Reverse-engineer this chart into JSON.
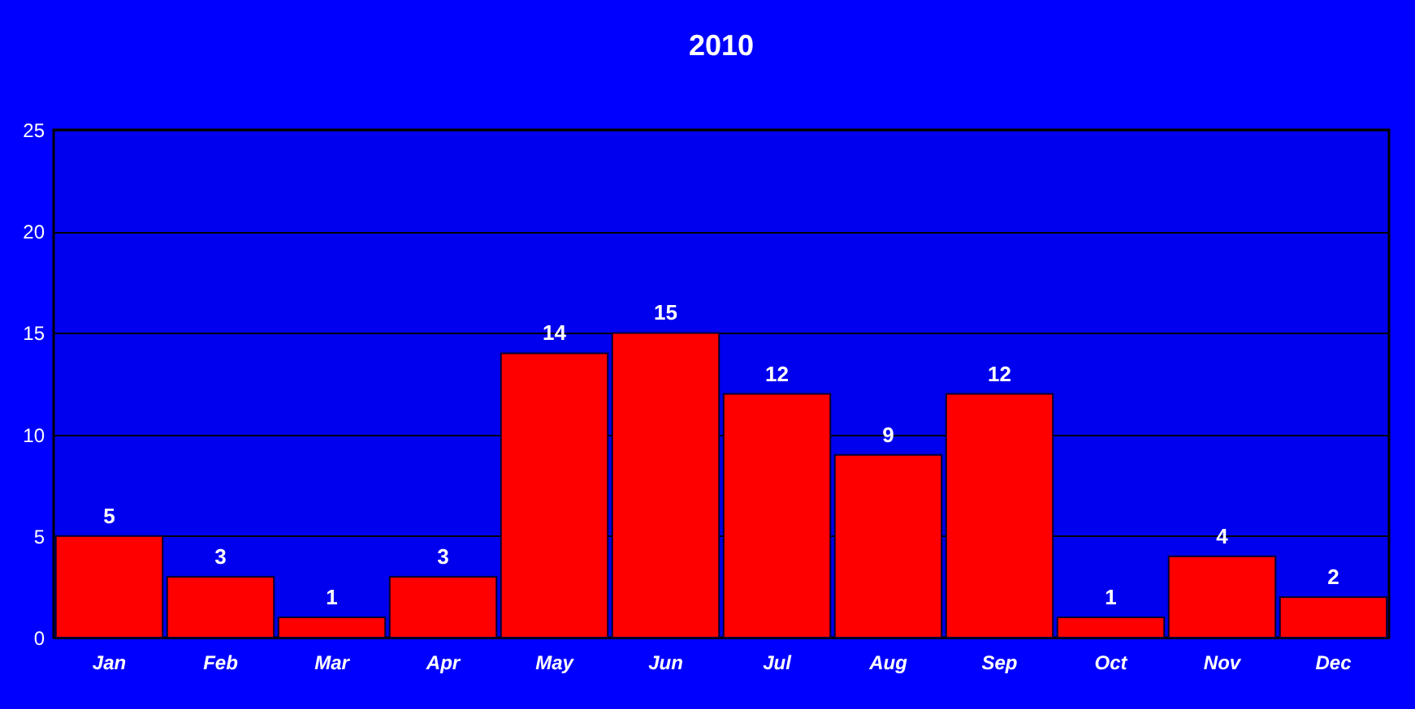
{
  "chart_data": {
    "type": "bar",
    "title": "2010",
    "categories": [
      "Jan",
      "Feb",
      "Mar",
      "Apr",
      "May",
      "Jun",
      "Jul",
      "Aug",
      "Sep",
      "Oct",
      "Nov",
      "Dec"
    ],
    "values": [
      5,
      3,
      1,
      3,
      14,
      15,
      12,
      9,
      12,
      1,
      4,
      2
    ],
    "color": "#ff0000",
    "ylim": [
      0,
      25
    ],
    "yticks": [
      0,
      5,
      10,
      15,
      20,
      25
    ],
    "grid": "y",
    "data_labels": true
  }
}
